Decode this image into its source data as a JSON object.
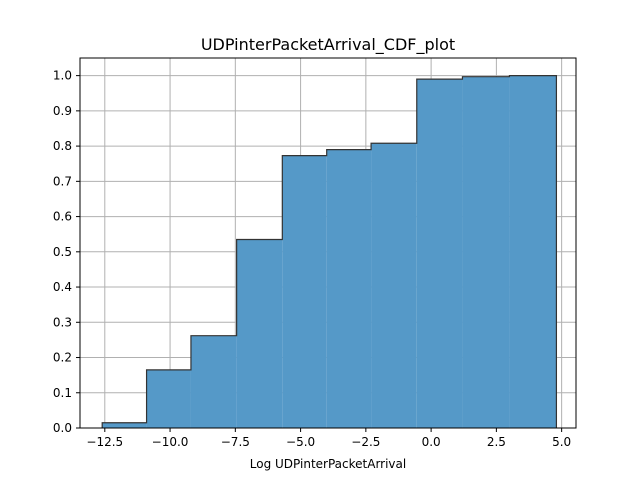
{
  "chart_data": {
    "type": "area",
    "title": "UDPinterPacketArrival_CDF_plot",
    "xlabel": "Log UDPinterPacketArrival",
    "ylabel": "",
    "xlim": [
      -13.45,
      5.55
    ],
    "ylim": [
      0.0,
      1.05
    ],
    "grid": true,
    "x_ticks": [
      -12.5,
      -10.0,
      -7.5,
      -5.0,
      -2.5,
      0.0,
      2.5,
      5.0
    ],
    "x_tick_labels": [
      "−12.5",
      "−10.0",
      "−7.5",
      "−5.0",
      "−2.5",
      "0.0",
      "2.5",
      "5.0"
    ],
    "y_ticks": [
      0.0,
      0.1,
      0.2,
      0.3,
      0.4,
      0.5,
      0.6,
      0.7,
      0.8,
      0.9,
      1.0
    ],
    "y_tick_labels": [
      "0.0",
      "0.1",
      "0.2",
      "0.3",
      "0.4",
      "0.5",
      "0.6",
      "0.7",
      "0.8",
      "0.9",
      "1.0"
    ],
    "bins": [
      {
        "x0": -12.6,
        "x1": -10.9,
        "cdf": 0.015
      },
      {
        "x0": -10.9,
        "x1": -9.2,
        "cdf": 0.165
      },
      {
        "x0": -9.2,
        "x1": -7.45,
        "cdf": 0.262
      },
      {
        "x0": -7.45,
        "x1": -5.7,
        "cdf": 0.535
      },
      {
        "x0": -5.7,
        "x1": -4.0,
        "cdf": 0.773
      },
      {
        "x0": -4.0,
        "x1": -2.3,
        "cdf": 0.79
      },
      {
        "x0": -2.3,
        "x1": -0.55,
        "cdf": 0.808
      },
      {
        "x0": -0.55,
        "x1": 1.2,
        "cdf": 0.99
      },
      {
        "x0": 1.2,
        "x1": 3.0,
        "cdf": 0.997
      },
      {
        "x0": 3.0,
        "x1": 4.8,
        "cdf": 1.0
      }
    ],
    "colors": {
      "fill": "#5599c8",
      "edge": "#333333",
      "grid": "#b0b0b0"
    }
  }
}
